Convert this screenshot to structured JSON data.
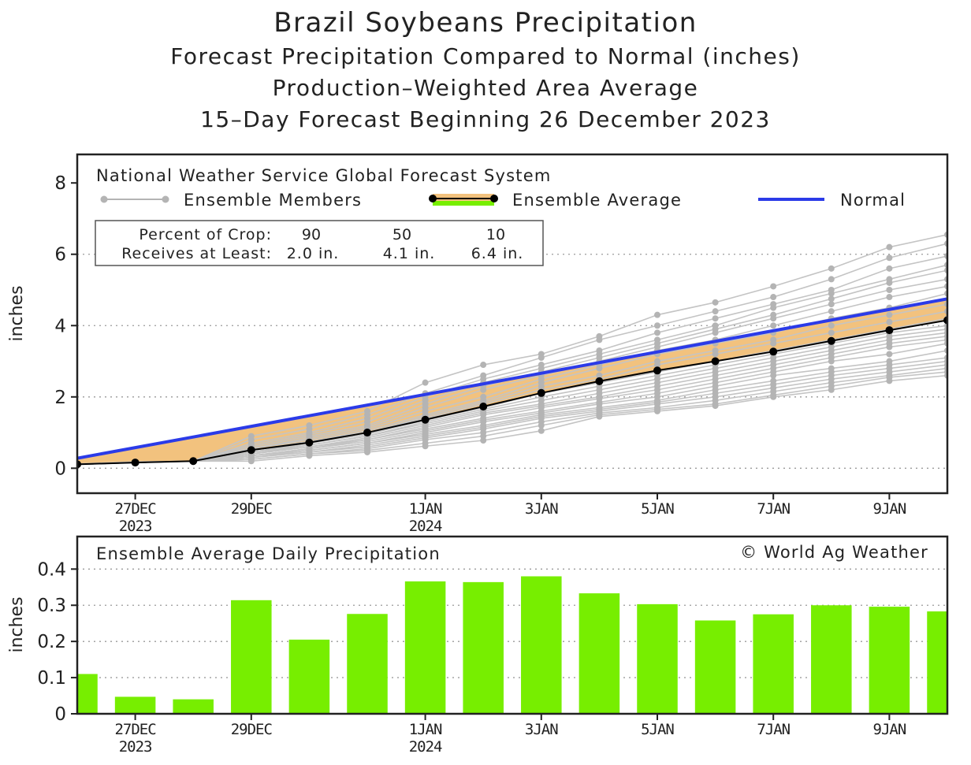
{
  "chart_data": [
    {
      "type": "line",
      "title": "Brazil Soybeans Precipitation",
      "subtitles": [
        "Forecast Precipitation Compared to Normal (inches)",
        "Production–Weighted Area Average",
        "15–Day Forecast Beginning 26 December 2023"
      ],
      "model_label": "National Weather Service Global Forecast System",
      "ylabel": "inches",
      "ylim": [
        -0.7,
        8.8
      ],
      "yticks": [
        0,
        2,
        4,
        6,
        8
      ],
      "xlim": [
        0,
        15
      ],
      "xticks": [
        {
          "x": 1,
          "line1": "27DEC",
          "line2": "2023"
        },
        {
          "x": 3,
          "line1": "29DEC",
          "line2": ""
        },
        {
          "x": 6,
          "line1": "1JAN",
          "line2": "2024"
        },
        {
          "x": 8,
          "line1": "3JAN",
          "line2": ""
        },
        {
          "x": 10,
          "line1": "5JAN",
          "line2": ""
        },
        {
          "x": 12,
          "line1": "7JAN",
          "line2": ""
        },
        {
          "x": 14,
          "line1": "9JAN",
          "line2": ""
        }
      ],
      "legend": {
        "members": "Ensemble Members",
        "average": "Ensemble Average",
        "normal": "Normal"
      },
      "crop_table": {
        "row1_label": "Percent of Crop:",
        "row2_label": "Receives at Least:",
        "percents": [
          "90",
          "50",
          "10"
        ],
        "amounts": [
          "2.0 in.",
          "4.1 in.",
          "6.4 in."
        ]
      },
      "series": [
        {
          "name": "Normal",
          "color": "#2b3be8",
          "x": [
            0,
            15
          ],
          "values": [
            0.28,
            4.75
          ]
        },
        {
          "name": "Ensemble Average",
          "color": "#000000",
          "x": [
            0,
            1,
            2,
            3,
            4,
            5,
            6,
            7,
            8,
            9,
            10,
            11,
            12,
            13,
            14,
            15
          ],
          "values": [
            0.11,
            0.16,
            0.2,
            0.51,
            0.72,
            1.0,
            1.36,
            1.73,
            2.11,
            2.44,
            2.74,
            3.0,
            3.27,
            3.57,
            3.87,
            4.15
          ]
        }
      ],
      "ensemble_members": [
        [
          0.12,
          0.18,
          0.2,
          0.9,
          1.2,
          1.6,
          2.4,
          2.9,
          3.2,
          3.7,
          4.3,
          4.65,
          5.1,
          5.6,
          6.2,
          6.55
        ],
        [
          0.12,
          0.17,
          0.2,
          0.8,
          1.1,
          1.5,
          2.1,
          2.6,
          3.1,
          3.6,
          4.0,
          4.4,
          4.8,
          5.3,
          5.9,
          6.3
        ],
        [
          0.11,
          0.17,
          0.2,
          0.7,
          1.0,
          1.4,
          2.0,
          2.5,
          2.9,
          3.3,
          3.8,
          4.2,
          4.6,
          5.0,
          5.6,
          5.95
        ],
        [
          0.11,
          0.16,
          0.2,
          0.65,
          0.95,
          1.3,
          1.9,
          2.4,
          2.8,
          3.2,
          3.6,
          4.0,
          4.5,
          4.9,
          5.3,
          5.7
        ],
        [
          0.11,
          0.16,
          0.2,
          0.6,
          0.9,
          1.2,
          1.8,
          2.3,
          2.7,
          3.1,
          3.5,
          3.9,
          4.3,
          4.75,
          5.2,
          5.55
        ],
        [
          0.11,
          0.16,
          0.2,
          0.55,
          0.85,
          1.15,
          1.7,
          2.2,
          2.6,
          3.0,
          3.4,
          3.8,
          4.2,
          4.6,
          5.0,
          5.3
        ],
        [
          0.11,
          0.16,
          0.2,
          0.55,
          0.8,
          1.1,
          1.6,
          2.0,
          2.5,
          2.9,
          3.3,
          3.6,
          4.0,
          4.4,
          4.8,
          5.1
        ],
        [
          0.11,
          0.16,
          0.2,
          0.5,
          0.75,
          1.05,
          1.5,
          1.9,
          2.4,
          2.8,
          3.2,
          3.5,
          3.8,
          4.2,
          4.5,
          4.9
        ],
        [
          0.11,
          0.16,
          0.2,
          0.5,
          0.75,
          1.0,
          1.45,
          1.85,
          2.3,
          2.6,
          3.0,
          3.3,
          3.6,
          4.0,
          4.3,
          4.6
        ],
        [
          0.11,
          0.16,
          0.2,
          0.45,
          0.7,
          1.0,
          1.4,
          1.8,
          2.2,
          2.5,
          2.9,
          3.2,
          3.5,
          3.8,
          4.1,
          4.4
        ],
        [
          0.11,
          0.16,
          0.2,
          0.45,
          0.7,
          0.95,
          1.35,
          1.7,
          2.1,
          2.4,
          2.7,
          3.0,
          3.3,
          3.6,
          3.9,
          4.2
        ],
        [
          0.11,
          0.16,
          0.2,
          0.45,
          0.65,
          0.9,
          1.3,
          1.65,
          2.0,
          2.3,
          2.6,
          2.9,
          3.2,
          3.5,
          3.8,
          4.0
        ],
        [
          0.11,
          0.16,
          0.2,
          0.4,
          0.65,
          0.9,
          1.25,
          1.6,
          1.9,
          2.2,
          2.5,
          2.8,
          3.1,
          3.4,
          3.7,
          3.9
        ],
        [
          0.11,
          0.16,
          0.2,
          0.4,
          0.6,
          0.85,
          1.2,
          1.55,
          1.8,
          2.1,
          2.4,
          2.7,
          3.0,
          3.3,
          3.6,
          3.8
        ],
        [
          0.11,
          0.16,
          0.2,
          0.4,
          0.6,
          0.8,
          1.15,
          1.5,
          1.75,
          2.0,
          2.3,
          2.6,
          2.9,
          3.2,
          3.5,
          3.7
        ],
        [
          0.11,
          0.16,
          0.2,
          0.35,
          0.55,
          0.8,
          1.1,
          1.4,
          1.7,
          1.95,
          2.2,
          2.5,
          2.8,
          3.1,
          3.4,
          3.6
        ],
        [
          0.11,
          0.16,
          0.2,
          0.35,
          0.55,
          0.75,
          1.05,
          1.35,
          1.6,
          1.85,
          2.1,
          2.4,
          2.7,
          3.0,
          3.2,
          3.5
        ],
        [
          0.11,
          0.16,
          0.2,
          0.35,
          0.5,
          0.7,
          1.0,
          1.3,
          1.55,
          1.8,
          2.0,
          2.3,
          2.6,
          2.8,
          3.0,
          3.3
        ],
        [
          0.11,
          0.16,
          0.2,
          0.3,
          0.5,
          0.7,
          0.95,
          1.2,
          1.5,
          1.7,
          1.9,
          2.2,
          2.45,
          2.7,
          2.9,
          3.1
        ],
        [
          0.11,
          0.16,
          0.2,
          0.3,
          0.45,
          0.65,
          0.9,
          1.15,
          1.45,
          1.65,
          1.85,
          2.1,
          2.35,
          2.6,
          2.8,
          3.0
        ],
        [
          0.11,
          0.16,
          0.2,
          0.3,
          0.45,
          0.6,
          0.85,
          1.1,
          1.4,
          1.6,
          1.8,
          2.0,
          2.25,
          2.5,
          2.7,
          2.9
        ],
        [
          0.11,
          0.16,
          0.2,
          0.25,
          0.4,
          0.55,
          0.8,
          1.0,
          1.3,
          1.55,
          1.7,
          1.9,
          2.15,
          2.4,
          2.6,
          2.8
        ],
        [
          0.11,
          0.16,
          0.2,
          0.25,
          0.4,
          0.5,
          0.7,
          0.9,
          1.2,
          1.5,
          1.65,
          1.8,
          2.05,
          2.3,
          2.55,
          2.7
        ],
        [
          0.11,
          0.16,
          0.2,
          0.2,
          0.35,
          0.45,
          0.62,
          0.78,
          1.05,
          1.45,
          1.6,
          1.75,
          2.0,
          2.2,
          2.45,
          2.6
        ]
      ]
    },
    {
      "type": "bar",
      "title": "Ensemble Average Daily Precipitation",
      "credit": "© World Ag Weather",
      "ylabel": "inches",
      "ylim": [
        0,
        0.49
      ],
      "yticks": [
        "0",
        "0.1",
        "0.2",
        "0.3",
        "0.4"
      ],
      "ytick_values": [
        0,
        0.1,
        0.2,
        0.3,
        0.4
      ],
      "bar_color": "#77ee00",
      "x": [
        0,
        1,
        2,
        3,
        4,
        5,
        6,
        7,
        8,
        9,
        10,
        11,
        12,
        13,
        14,
        15
      ],
      "values": [
        0.11,
        0.047,
        0.04,
        0.314,
        0.205,
        0.276,
        0.366,
        0.364,
        0.38,
        0.333,
        0.303,
        0.258,
        0.275,
        0.3,
        0.296,
        0.283
      ]
    }
  ],
  "colors": {
    "member_line": "#c4c4c4",
    "member_dot": "#b4b4b4",
    "band_fill": "#f2c27e",
    "legend_green": "#77ee00",
    "normal": "#2b3be8"
  }
}
